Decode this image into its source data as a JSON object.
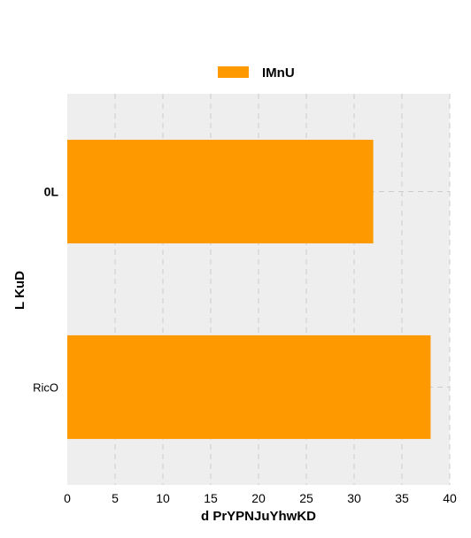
{
  "chart_data": {
    "type": "bar",
    "orientation": "horizontal",
    "categories": [
      "0L",
      "RicO"
    ],
    "series": [
      {
        "name": "IMnU",
        "values": [
          32,
          38
        ],
        "color": "#ff9900"
      }
    ],
    "xlabel": "d PrYPNJuYhwKD",
    "ylabel": "L KuD",
    "xlim": [
      0,
      40
    ],
    "xticks": [
      0,
      5,
      10,
      15,
      20,
      25,
      30,
      35,
      40
    ],
    "grid": true,
    "legend": "top-center",
    "plot_background": "#eeeeee"
  }
}
